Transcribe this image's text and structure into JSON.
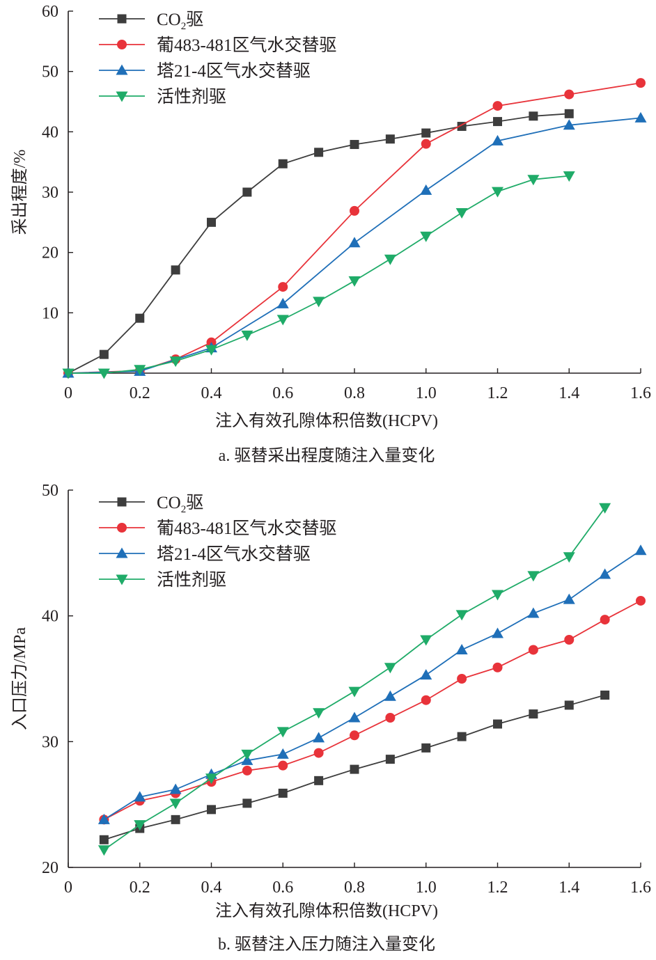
{
  "chart_data": [
    {
      "type": "line",
      "caption": "a. 驱替采出程度随注入量变化",
      "xlabel": "注入有效孔隙体积倍数(HCPV)",
      "ylabel": "采出程度/%",
      "xlim": [
        0,
        1.6
      ],
      "ylim": [
        0,
        60
      ],
      "x_ticks": [
        "0",
        "0.2",
        "0.4",
        "0.6",
        "0.8",
        "1.0",
        "1.2",
        "1.4",
        "1.6"
      ],
      "y_ticks": [
        "10",
        "20",
        "30",
        "40",
        "50",
        "60"
      ],
      "grid": false,
      "legend_position": "top-left",
      "series": [
        {
          "name": "CO2驱",
          "name_main": "CO",
          "name_sub": "2",
          "name_tail": "驱",
          "color": "#3d3d3d",
          "marker": "square",
          "x": [
            0,
            0.1,
            0.2,
            0.3,
            0.4,
            0.5,
            0.6,
            0.7,
            0.8,
            0.9,
            1.0,
            1.1,
            1.2,
            1.3,
            1.4
          ],
          "y": [
            0,
            3.1,
            9.1,
            17.1,
            25,
            30,
            34.7,
            36.6,
            37.9,
            38.8,
            39.8,
            40.9,
            41.7,
            42.6,
            43
          ]
        },
        {
          "name": "葡483-481区气水交替驱",
          "color": "#e8333a",
          "marker": "circle",
          "x": [
            0,
            0.2,
            0.3,
            0.4,
            0.6,
            0.8,
            1.0,
            1.2,
            1.4,
            1.6
          ],
          "y": [
            0,
            0.4,
            2.3,
            5.1,
            14.3,
            26.9,
            38,
            44.3,
            46.2,
            48.1
          ]
        },
        {
          "name": "塔21-4区气水交替驱",
          "color": "#1f6fb8",
          "marker": "triangle-up",
          "x": [
            0,
            0.2,
            0.4,
            0.6,
            0.8,
            1.0,
            1.2,
            1.4,
            1.6
          ],
          "y": [
            0,
            0.3,
            4.2,
            11.5,
            21.6,
            30.3,
            38.5,
            41.1,
            42.3
          ]
        },
        {
          "name": "活性剂驱",
          "color": "#1fab68",
          "marker": "triangle-down",
          "x": [
            0,
            0.1,
            0.2,
            0.3,
            0.4,
            0.5,
            0.6,
            0.7,
            0.8,
            0.9,
            1.0,
            1.1,
            1.2,
            1.3,
            1.4
          ],
          "y": [
            0,
            0,
            0.6,
            2,
            3.9,
            6.3,
            8.9,
            11.9,
            15.3,
            18.9,
            22.7,
            26.6,
            30.1,
            32.1,
            32.7
          ]
        }
      ]
    },
    {
      "type": "line",
      "caption": "b. 驱替注入压力随注入量变化",
      "xlabel": "注入有效孔隙体积倍数(HCPV)",
      "ylabel": "入口压力/MPa",
      "xlim": [
        0,
        1.6
      ],
      "ylim": [
        20,
        50
      ],
      "x_ticks": [
        "0",
        "0.2",
        "0.4",
        "0.6",
        "0.8",
        "1.0",
        "1.2",
        "1.4",
        "1.6"
      ],
      "y_ticks": [
        "20",
        "30",
        "40",
        "50"
      ],
      "grid": false,
      "legend_position": "top-left",
      "series": [
        {
          "name": "CO2驱",
          "name_main": "CO",
          "name_sub": "2",
          "name_tail": "驱",
          "color": "#3d3d3d",
          "marker": "square",
          "x": [
            0.1,
            0.2,
            0.3,
            0.4,
            0.5,
            0.6,
            0.7,
            0.8,
            0.9,
            1.0,
            1.1,
            1.2,
            1.3,
            1.4,
            1.5
          ],
          "y": [
            22.2,
            23.1,
            23.8,
            24.6,
            25.1,
            25.9,
            26.9,
            27.8,
            28.6,
            29.5,
            30.4,
            31.4,
            32.2,
            32.9,
            33.7
          ]
        },
        {
          "name": "葡483-481区气水交替驱",
          "color": "#e8333a",
          "marker": "circle",
          "x": [
            0.1,
            0.2,
            0.3,
            0.4,
            0.5,
            0.6,
            0.7,
            0.8,
            0.9,
            1.0,
            1.1,
            1.2,
            1.3,
            1.4,
            1.5,
            1.6
          ],
          "y": [
            23.8,
            25.3,
            25.9,
            26.8,
            27.7,
            28.1,
            29.1,
            30.5,
            31.9,
            33.3,
            35,
            35.9,
            37.3,
            38.1,
            39.7,
            41.2
          ]
        },
        {
          "name": "塔21-4区气水交替驱",
          "color": "#1f6fb8",
          "marker": "triangle-up",
          "x": [
            0.1,
            0.2,
            0.3,
            0.4,
            0.5,
            0.6,
            0.7,
            0.8,
            0.9,
            1.0,
            1.1,
            1.2,
            1.3,
            1.4,
            1.5,
            1.6
          ],
          "y": [
            23.8,
            25.6,
            26.2,
            27.4,
            28.5,
            29,
            30.3,
            31.9,
            33.6,
            35.3,
            37.3,
            38.6,
            40.2,
            41.3,
            43.3,
            45.2
          ]
        },
        {
          "name": "活性剂驱",
          "color": "#1fab68",
          "marker": "triangle-down",
          "x": [
            0.1,
            0.2,
            0.3,
            0.4,
            0.5,
            0.6,
            0.7,
            0.8,
            0.9,
            1.0,
            1.1,
            1.2,
            1.3,
            1.4,
            1.5
          ],
          "y": [
            21.4,
            23.4,
            25.1,
            27.1,
            29,
            30.8,
            32.3,
            34,
            35.9,
            38.1,
            40.1,
            41.7,
            43.2,
            44.7,
            48.6
          ]
        }
      ]
    }
  ]
}
